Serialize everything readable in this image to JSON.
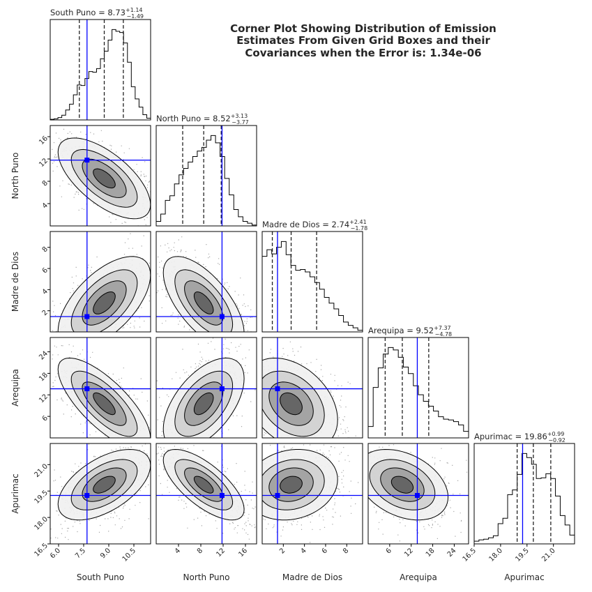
{
  "chart_data": {
    "type": "corner",
    "title_lines": [
      "Corner Plot Showing Distribution of Emission",
      "Estimates From Given Grid Boxes and their",
      "Covariances when the Error is: 1.34e-06"
    ],
    "parameters": [
      {
        "name": "South Puno",
        "median": 8.73,
        "plus": "+1.14",
        "minus": "−1.49",
        "range": [
          5.5,
          11.5
        ],
        "ticks": [
          "6.0",
          "7.5",
          "9.0",
          "10.5"
        ],
        "tick_values": [
          6.0,
          7.5,
          9.0,
          10.5
        ],
        "truth": 7.7,
        "quantiles": [
          7.24,
          8.73,
          9.87
        ]
      },
      {
        "name": "North Puno",
        "median": 8.52,
        "plus": "+3.13",
        "minus": "−3.77",
        "range": [
          0.0,
          18.0
        ],
        "ticks": [
          "4",
          "8",
          "12",
          "16"
        ],
        "tick_values": [
          4,
          8,
          12,
          16
        ],
        "truth": 11.8,
        "quantiles": [
          4.75,
          8.52,
          11.65
        ]
      },
      {
        "name": "Madre de Dios",
        "median": 2.74,
        "plus": "+2.41",
        "minus": "−1.78",
        "range": [
          0.0,
          9.5
        ],
        "ticks": [
          "2",
          "4",
          "6",
          "8"
        ],
        "tick_values": [
          2,
          4,
          6,
          8
        ],
        "truth": 1.45,
        "quantiles": [
          0.96,
          2.74,
          5.15
        ]
      },
      {
        "name": "Arequipa",
        "median": 9.52,
        "plus": "+7.37",
        "minus": "−4.78",
        "range": [
          0.0,
          28.0
        ],
        "ticks": [
          "6",
          "12",
          "18",
          "24"
        ],
        "tick_values": [
          6,
          12,
          18,
          24
        ],
        "truth": 13.7,
        "quantiles": [
          4.74,
          9.52,
          16.89
        ]
      },
      {
        "name": "Apurimac",
        "median": 19.86,
        "plus": "+0.99",
        "minus": "−0.92",
        "range": [
          16.5,
          22.2
        ],
        "ticks": [
          "16.5",
          "18.0",
          "19.5",
          "21.0"
        ],
        "tick_values": [
          16.5,
          18.0,
          19.5,
          21.0
        ],
        "truth": 19.25,
        "quantiles": [
          18.94,
          19.86,
          20.85
        ]
      }
    ],
    "histograms": [
      [
        1,
        2,
        4,
        8,
        17,
        27,
        43,
        60,
        59,
        71,
        83,
        82,
        88,
        105,
        118,
        137,
        155,
        152,
        150,
        132,
        99,
        57,
        36,
        22,
        9,
        3
      ],
      [
        5,
        13,
        28,
        33,
        46,
        56,
        63,
        70,
        76,
        82,
        86,
        94,
        99,
        91,
        76,
        52,
        34,
        18,
        10,
        5,
        3,
        1
      ],
      [
        92,
        100,
        95,
        103,
        110,
        94,
        81,
        75,
        76,
        73,
        67,
        60,
        52,
        42,
        35,
        28,
        20,
        12,
        8,
        5,
        2
      ],
      [
        14,
        62,
        86,
        103,
        111,
        108,
        99,
        87,
        79,
        64,
        53,
        45,
        39,
        33,
        26,
        23,
        22,
        20,
        16,
        8
      ],
      [
        4,
        6,
        7,
        9,
        12,
        30,
        38,
        73,
        80,
        103,
        134,
        128,
        118,
        97,
        98,
        104,
        97,
        71,
        42,
        28,
        13
      ]
    ],
    "correlations": {
      "1_0": -0.65,
      "2_0": 0.6,
      "2_1": -0.65,
      "3_0": -0.75,
      "3_1": 0.55,
      "3_2": -0.35,
      "4_0": 0.55,
      "4_1": -0.7,
      "4_2": 0.15,
      "4_3": -0.35
    },
    "truth_color": "#0000ff",
    "grid": false,
    "legend": "none"
  }
}
